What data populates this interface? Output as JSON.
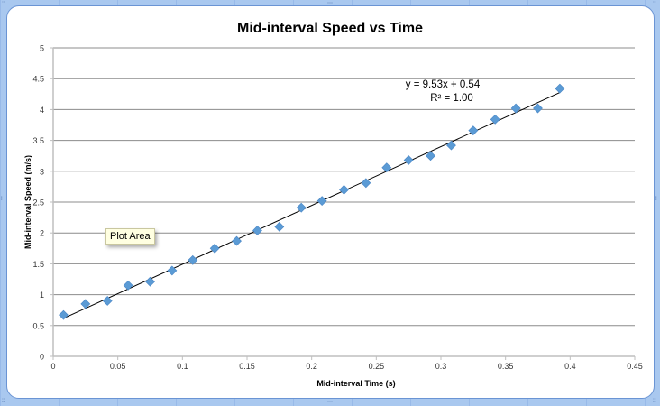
{
  "chart_data": {
    "type": "scatter",
    "title": "Mid-interval Speed vs Time",
    "xlabel": "Mid-interval Time (s)",
    "ylabel": "Mid-interval Speed (m/s)",
    "xlim": [
      0,
      0.45
    ],
    "ylim": [
      0,
      5
    ],
    "x_ticks": [
      "0",
      "0.05",
      "0.1",
      "0.15",
      "0.2",
      "0.25",
      "0.3",
      "0.35",
      "0.4",
      "0.45"
    ],
    "y_ticks": [
      "0",
      "0.5",
      "1",
      "1.5",
      "2",
      "2.5",
      "3",
      "3.5",
      "4",
      "4.5",
      "5"
    ],
    "grid": "horizontal major gridlines",
    "legend": "none",
    "marker": "diamond",
    "marker_color": "#5b9bd5",
    "series": [
      {
        "name": "Mid-interval Speed",
        "x": [
          0.008,
          0.025,
          0.042,
          0.058,
          0.075,
          0.092,
          0.108,
          0.125,
          0.142,
          0.158,
          0.175,
          0.192,
          0.208,
          0.225,
          0.242,
          0.258,
          0.275,
          0.292,
          0.308,
          0.325,
          0.342,
          0.358,
          0.375,
          0.392
        ],
        "y": [
          0.67,
          0.85,
          0.9,
          1.15,
          1.21,
          1.39,
          1.56,
          1.75,
          1.87,
          2.04,
          2.1,
          2.41,
          2.52,
          2.7,
          2.81,
          3.06,
          3.18,
          3.25,
          3.42,
          3.66,
          3.84,
          4.02,
          4.02,
          4.34
        ]
      }
    ],
    "trendline": {
      "type": "linear",
      "slope": 9.53,
      "intercept": 0.54,
      "x_range": [
        0.008,
        0.392
      ],
      "equation_label": "y = 9.53x + 0.54",
      "r2_label": "R² = 1.00"
    },
    "annotations": [
      "Plot Area"
    ]
  },
  "tooltip": {
    "text": "Plot Area"
  }
}
